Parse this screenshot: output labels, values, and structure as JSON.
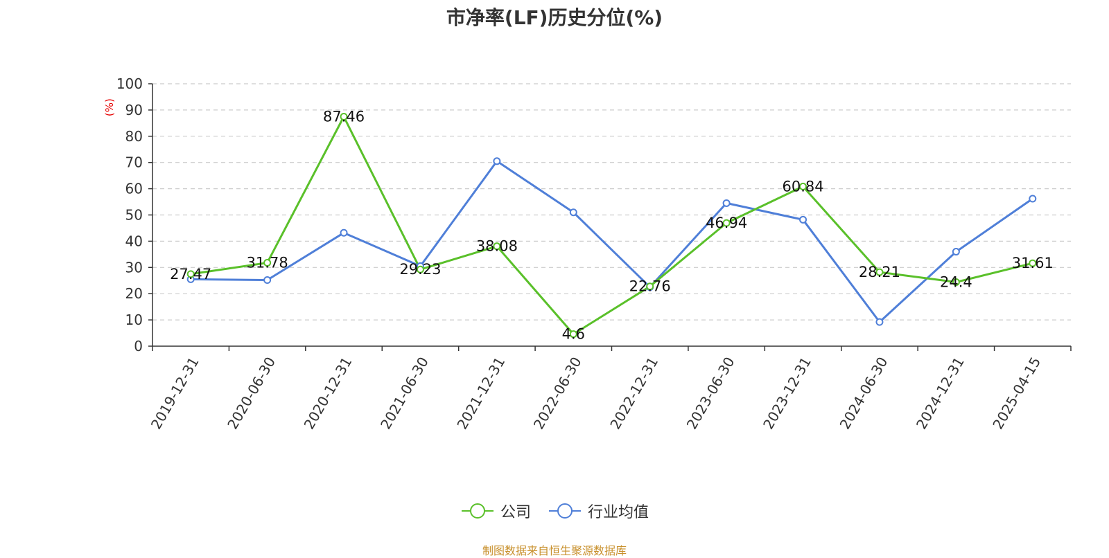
{
  "chart_data": {
    "type": "line",
    "title": "市净率(LF)历史分位(%)",
    "ylabel": "(%)",
    "ylim": [
      0,
      100
    ],
    "yticks": [
      0,
      10,
      20,
      30,
      40,
      50,
      60,
      70,
      80,
      90,
      100
    ],
    "grid": true,
    "legend_position": "bottom",
    "categories": [
      "2019-12-31",
      "2020-06-30",
      "2020-12-31",
      "2021-06-30",
      "2021-12-31",
      "2022-06-30",
      "2022-12-31",
      "2023-06-30",
      "2023-12-31",
      "2024-06-30",
      "2024-12-31",
      "2025-04-15"
    ],
    "series": [
      {
        "name": "公司",
        "color": "#5ac02a",
        "values": [
          27.47,
          31.78,
          87.46,
          29.23,
          38.08,
          4.6,
          22.76,
          46.94,
          60.84,
          28.21,
          24.4,
          31.61
        ],
        "show_labels": true
      },
      {
        "name": "行业均值",
        "color": "#4f7fd8",
        "values": [
          25.5,
          25.2,
          43.2,
          30.5,
          70.5,
          51.0,
          22.5,
          54.5,
          48.2,
          9.2,
          36.0,
          56.2
        ],
        "show_labels": false
      }
    ]
  },
  "source": "制图数据来自恒生聚源数据库"
}
